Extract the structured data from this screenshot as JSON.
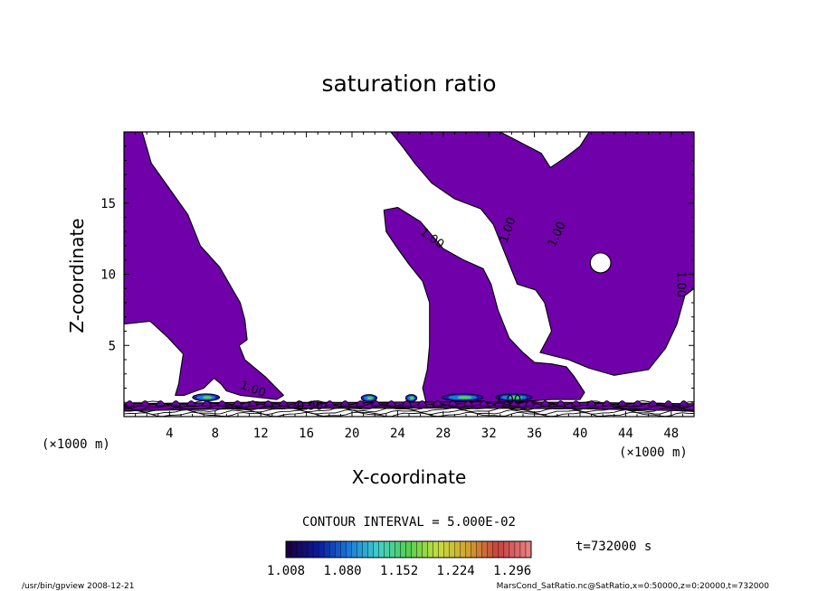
{
  "chart_data": {
    "type": "heatmap",
    "title": "saturation ratio",
    "xlabel": "X-coordinate",
    "ylabel": "Z-coordinate",
    "x_unit": "(×1000 m)",
    "y_unit": "(×1000 m)",
    "xlim": [
      0,
      50
    ],
    "ylim": [
      0,
      20
    ],
    "x_ticks": [
      4,
      8,
      12,
      16,
      20,
      24,
      28,
      32,
      36,
      40,
      44,
      48
    ],
    "y_ticks": [
      5,
      10,
      15
    ],
    "contour_interval_text": "CONTOUR INTERVAL = 5.000E-02",
    "contour_labels": [
      {
        "text": "1.00",
        "x": 27.0,
        "y": 12.5,
        "rot": 35
      },
      {
        "text": "1.00",
        "x": 33.7,
        "y": 13.1,
        "rot": -70
      },
      {
        "text": "1.00",
        "x": 38.0,
        "y": 12.8,
        "rot": -65
      },
      {
        "text": "1.00",
        "x": 48.8,
        "y": 9.3,
        "rot": 90
      },
      {
        "text": "1.00",
        "x": 11.3,
        "y": 1.9,
        "rot": 20
      },
      {
        "text": "0.90",
        "x": 16.3,
        "y": 0.7,
        "rot": 0
      },
      {
        "text": "1.00",
        "x": 33.7,
        "y": 1.1,
        "rot": 0
      }
    ],
    "colorbar": {
      "ticks": [
        "1.008",
        "1.080",
        "1.152",
        "1.224",
        "1.296"
      ],
      "min": 1.008,
      "max": 1.32,
      "colors": [
        "#1a0044",
        "#0a1a9e",
        "#1a7adc",
        "#40d0c8",
        "#55d050",
        "#c8dc40",
        "#d0a030",
        "#c84040",
        "#e88080"
      ]
    },
    "time_label": "t=732000 s",
    "field_color": "#7000aa",
    "regions": [
      {
        "name": "left plume",
        "points": [
          [
            0,
            20
          ],
          [
            1.6,
            20
          ],
          [
            2.4,
            17.8
          ],
          [
            4.0,
            16.0
          ],
          [
            5.6,
            14.2
          ],
          [
            6.7,
            12.0
          ],
          [
            8.4,
            10.5
          ],
          [
            10.2,
            8.0
          ],
          [
            10.6,
            6.8
          ],
          [
            10.8,
            5.4
          ],
          [
            10.1,
            5.0
          ],
          [
            10.6,
            4.0
          ],
          [
            12.4,
            2.8
          ],
          [
            14.0,
            1.5
          ],
          [
            13.4,
            1.2
          ],
          [
            10.2,
            1.5
          ],
          [
            9.0,
            1.8
          ],
          [
            8.5,
            2.3
          ],
          [
            7.9,
            2.7
          ],
          [
            7.0,
            2.0
          ],
          [
            5.3,
            1.5
          ],
          [
            4.5,
            1.5
          ],
          [
            4.8,
            2.3
          ],
          [
            5.0,
            3.4
          ],
          [
            5.2,
            4.4
          ],
          [
            4.5,
            5.0
          ],
          [
            3.8,
            5.6
          ],
          [
            2.3,
            6.7
          ],
          [
            0,
            6.5
          ]
        ]
      },
      {
        "name": "central plume",
        "points": [
          [
            22.8,
            14.5
          ],
          [
            24.0,
            14.7
          ],
          [
            26.0,
            13.7
          ],
          [
            28.0,
            11.8
          ],
          [
            29.8,
            11.0
          ],
          [
            31.5,
            10.4
          ],
          [
            32.2,
            9.3
          ],
          [
            32.8,
            7.5
          ],
          [
            33.8,
            5.5
          ],
          [
            35.0,
            4.5
          ],
          [
            36.0,
            3.8
          ],
          [
            37.5,
            3.7
          ],
          [
            38.8,
            3.5
          ],
          [
            39.5,
            2.8
          ],
          [
            40.4,
            1.7
          ],
          [
            40.0,
            1.2
          ],
          [
            37.5,
            1.2
          ],
          [
            34.0,
            1.0
          ],
          [
            30.0,
            1.0
          ],
          [
            26.5,
            1.0
          ],
          [
            26.2,
            2.0
          ],
          [
            26.6,
            3.3
          ],
          [
            26.8,
            5.0
          ],
          [
            26.8,
            8.0
          ],
          [
            26.2,
            9.5
          ],
          [
            25.0,
            10.7
          ],
          [
            24.0,
            11.8
          ],
          [
            23.0,
            13.0
          ]
        ]
      },
      {
        "name": "upper band",
        "points": [
          [
            23.4,
            20
          ],
          [
            33.0,
            20
          ],
          [
            36.6,
            18.5
          ],
          [
            37.4,
            17.5
          ],
          [
            38.7,
            18.2
          ],
          [
            40.0,
            19.0
          ],
          [
            40.8,
            20.0
          ],
          [
            50,
            20
          ],
          [
            50,
            9.0
          ],
          [
            49.2,
            8.5
          ],
          [
            48.5,
            6.5
          ],
          [
            47.5,
            4.8
          ],
          [
            46.0,
            3.3
          ],
          [
            43.0,
            2.9
          ],
          [
            40.8,
            3.4
          ],
          [
            39.0,
            4.0
          ],
          [
            36.5,
            4.5
          ],
          [
            37.5,
            6.0
          ],
          [
            36.9,
            8.0
          ],
          [
            36.1,
            8.9
          ],
          [
            34.5,
            9.3
          ],
          [
            33.4,
            11.5
          ],
          [
            32.4,
            13.5
          ],
          [
            31.3,
            14.6
          ],
          [
            29.0,
            15.3
          ],
          [
            27.0,
            16.4
          ],
          [
            25.5,
            17.8
          ],
          [
            24.4,
            19.0
          ]
        ]
      },
      {
        "name": "bottom band",
        "points": [
          [
            0,
            0.4
          ],
          [
            10,
            0.55
          ],
          [
            20,
            0.6
          ],
          [
            30,
            0.6
          ],
          [
            40,
            0.55
          ],
          [
            50,
            0.4
          ],
          [
            50,
            0.9
          ],
          [
            40,
            1.0
          ],
          [
            30,
            1.05
          ],
          [
            20,
            1.0
          ],
          [
            10,
            1.0
          ],
          [
            0,
            0.9
          ]
        ]
      }
    ],
    "holes": [
      {
        "name": "oval hole",
        "cx": 41.8,
        "cy": 10.8,
        "rx": 0.9,
        "ry": 0.7
      }
    ]
  },
  "footer": {
    "left": "/usr/bin/gpview   2008-12-21",
    "right": "MarsCond_SatRatio.nc@SatRatio,x=0:50000,z=0:20000,t=732000"
  }
}
